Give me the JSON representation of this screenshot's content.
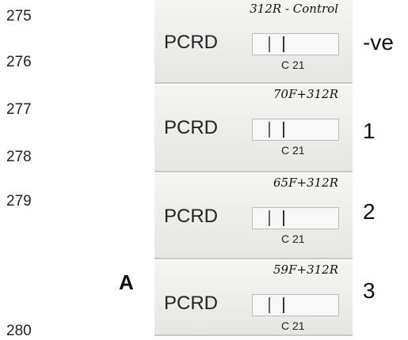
{
  "line_numbers": [
    "275",
    "276",
    "277",
    "278",
    "279",
    "280"
  ],
  "panel_label": "A",
  "strips": [
    {
      "annotation": "312R - Control",
      "brand": "PCRD",
      "window_label": "C 21",
      "result": "-ve"
    },
    {
      "annotation": "70F+312R",
      "brand": "PCRD",
      "window_label": "C 21",
      "result": "1"
    },
    {
      "annotation": "65F+312R",
      "brand": "PCRD",
      "window_label": "C 21",
      "result": "2"
    },
    {
      "annotation": "59F+312R",
      "brand": "PCRD",
      "window_label": "C 21",
      "result": "3"
    }
  ]
}
